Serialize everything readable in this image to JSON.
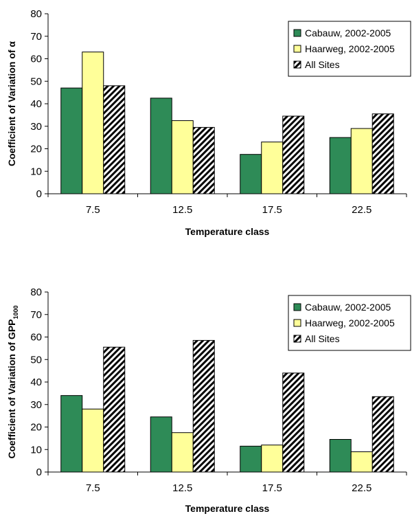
{
  "colors": {
    "cabauw": "#2e8b57",
    "haarweg": "#ffff99",
    "all_sites_hatch": "#000000",
    "axis": "#000000"
  },
  "chart_data": [
    {
      "type": "bar",
      "categories": [
        "7.5",
        "12.5",
        "17.5",
        "22.5"
      ],
      "series": [
        {
          "name": "Cabauw, 2002-2005",
          "values": [
            47,
            42.5,
            17.5,
            25
          ],
          "fill": "solid"
        },
        {
          "name": "Haarweg, 2002-2005",
          "values": [
            63,
            32.5,
            23,
            29
          ],
          "fill": "solid"
        },
        {
          "name": "All Sites",
          "values": [
            48,
            29.5,
            34.5,
            35.5
          ],
          "fill": "hatched"
        }
      ],
      "xlabel": "Temperature class",
      "ylabel": "Coefficient of Variation of α",
      "ylim": [
        0,
        80
      ],
      "yticks": [
        0,
        10,
        20,
        30,
        40,
        50,
        60,
        70,
        80
      ],
      "grid": false,
      "legend": "top-right"
    },
    {
      "type": "bar",
      "categories": [
        "7.5",
        "12.5",
        "17.5",
        "22.5"
      ],
      "series": [
        {
          "name": "Cabauw, 2002-2005",
          "values": [
            34,
            24.5,
            11.5,
            14.5
          ],
          "fill": "solid"
        },
        {
          "name": "Haarweg, 2002-2005",
          "values": [
            28,
            17.5,
            12,
            9
          ],
          "fill": "solid"
        },
        {
          "name": "All Sites",
          "values": [
            55.5,
            58.5,
            44,
            33.5
          ],
          "fill": "hatched"
        }
      ],
      "xlabel": "Temperature class",
      "ylabel": "Coefficient of Variation of GPP",
      "ylabel_subscript": "1000",
      "ylim": [
        0,
        80
      ],
      "yticks": [
        0,
        10,
        20,
        30,
        40,
        50,
        60,
        70,
        80
      ],
      "grid": false,
      "legend": "top-right"
    }
  ]
}
